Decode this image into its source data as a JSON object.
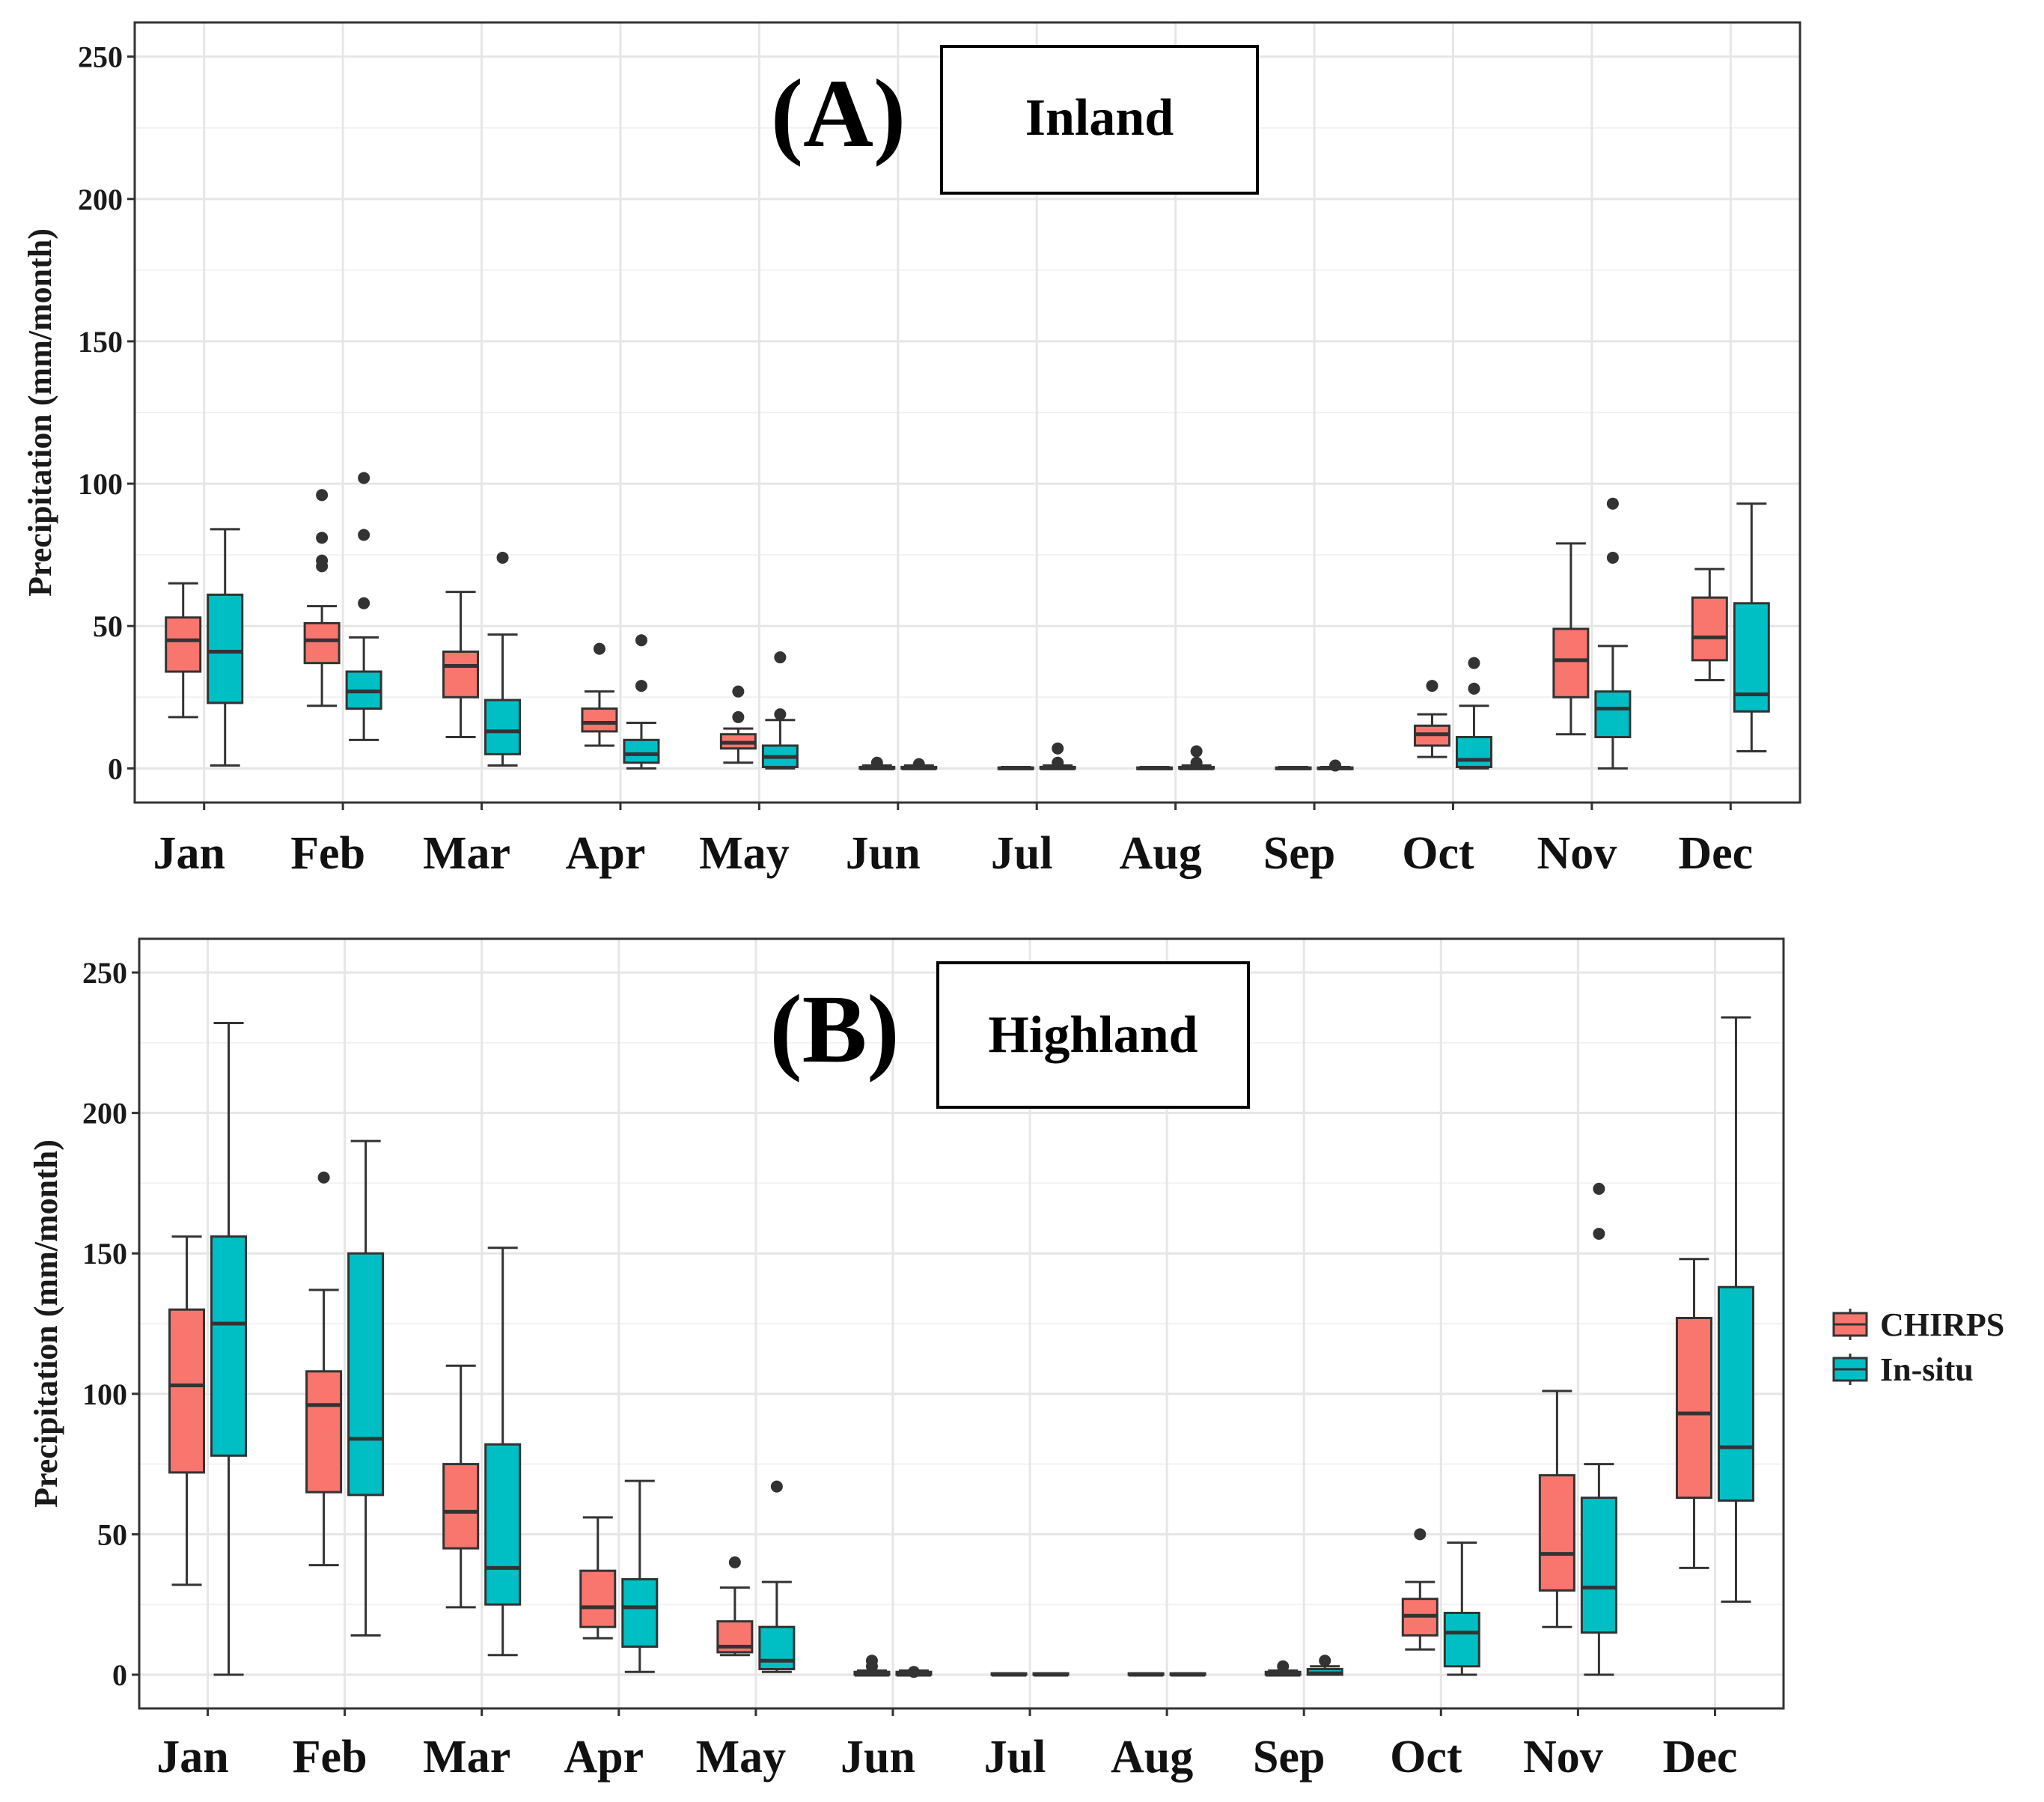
{
  "chart_data": [
    {
      "type": "boxplot",
      "panel_label": "(A)",
      "title": "Inland",
      "ylabel": "Precipitation (mm/month)",
      "xlabel": "",
      "ylim": [
        -12,
        262
      ],
      "yticks": [
        0,
        50,
        100,
        150,
        200,
        250
      ],
      "grid": true,
      "categories": [
        "Jan",
        "Feb",
        "Mar",
        "Apr",
        "May",
        "Jun",
        "Jul",
        "Aug",
        "Sep",
        "Oct",
        "Nov",
        "Dec"
      ],
      "series": [
        {
          "name": "CHIRPS",
          "color": "#F8766D",
          "boxes": [
            {
              "whisker_low": 18,
              "q1": 34,
              "median": 45,
              "q3": 53,
              "whisker_high": 65,
              "outliers": []
            },
            {
              "whisker_low": 22,
              "q1": 37,
              "median": 45,
              "q3": 51,
              "whisker_high": 57,
              "outliers": [
                71,
                73,
                81,
                96
              ]
            },
            {
              "whisker_low": 11,
              "q1": 25,
              "median": 36,
              "q3": 41,
              "whisker_high": 62,
              "outliers": []
            },
            {
              "whisker_low": 8,
              "q1": 13,
              "median": 16,
              "q3": 21,
              "whisker_high": 27,
              "outliers": [
                42
              ]
            },
            {
              "whisker_low": 2,
              "q1": 7,
              "median": 9,
              "q3": 12,
              "whisker_high": 14,
              "outliers": [
                18,
                27
              ]
            },
            {
              "whisker_low": 0,
              "q1": 0,
              "median": 0,
              "q3": 0.5,
              "whisker_high": 1,
              "outliers": [
                2
              ]
            },
            {
              "whisker_low": 0,
              "q1": 0,
              "median": 0,
              "q3": 0.3,
              "whisker_high": 0.5,
              "outliers": []
            },
            {
              "whisker_low": 0,
              "q1": 0,
              "median": 0,
              "q3": 0.3,
              "whisker_high": 0.5,
              "outliers": []
            },
            {
              "whisker_low": 0,
              "q1": 0,
              "median": 0,
              "q3": 0.3,
              "whisker_high": 0.5,
              "outliers": []
            },
            {
              "whisker_low": 4,
              "q1": 8,
              "median": 12,
              "q3": 15,
              "whisker_high": 19,
              "outliers": [
                29
              ]
            },
            {
              "whisker_low": 12,
              "q1": 25,
              "median": 38,
              "q3": 49,
              "whisker_high": 79,
              "outliers": []
            },
            {
              "whisker_low": 31,
              "q1": 38,
              "median": 46,
              "q3": 60,
              "whisker_high": 70,
              "outliers": []
            }
          ]
        },
        {
          "name": "In-situ",
          "color": "#00BFC4",
          "boxes": [
            {
              "whisker_low": 1,
              "q1": 23,
              "median": 41,
              "q3": 61,
              "whisker_high": 84,
              "outliers": []
            },
            {
              "whisker_low": 10,
              "q1": 21,
              "median": 27,
              "q3": 34,
              "whisker_high": 46,
              "outliers": [
                58,
                82,
                102
              ]
            },
            {
              "whisker_low": 1,
              "q1": 5,
              "median": 13,
              "q3": 24,
              "whisker_high": 47,
              "outliers": [
                74
              ]
            },
            {
              "whisker_low": 0,
              "q1": 2,
              "median": 5,
              "q3": 10,
              "whisker_high": 16,
              "outliers": [
                29,
                45
              ]
            },
            {
              "whisker_low": 0,
              "q1": 0.5,
              "median": 4,
              "q3": 8,
              "whisker_high": 17,
              "outliers": [
                19,
                39
              ]
            },
            {
              "whisker_low": 0,
              "q1": 0,
              "median": 0,
              "q3": 0.5,
              "whisker_high": 1,
              "outliers": [
                1.5
              ]
            },
            {
              "whisker_low": 0,
              "q1": 0,
              "median": 0,
              "q3": 0.5,
              "whisker_high": 1,
              "outliers": [
                2,
                7
              ]
            },
            {
              "whisker_low": 0,
              "q1": 0,
              "median": 0,
              "q3": 0.5,
              "whisker_high": 1,
              "outliers": [
                2,
                6
              ]
            },
            {
              "whisker_low": 0,
              "q1": 0,
              "median": 0,
              "q3": 0.3,
              "whisker_high": 0.5,
              "outliers": [
                1
              ]
            },
            {
              "whisker_low": 0,
              "q1": 0.5,
              "median": 3,
              "q3": 11,
              "whisker_high": 22,
              "outliers": [
                28,
                37
              ]
            },
            {
              "whisker_low": 0,
              "q1": 11,
              "median": 21,
              "q3": 27,
              "whisker_high": 43,
              "outliers": [
                74,
                93
              ]
            },
            {
              "whisker_low": 6,
              "q1": 20,
              "median": 26,
              "q3": 58,
              "whisker_high": 93,
              "outliers": []
            }
          ]
        }
      ]
    },
    {
      "type": "boxplot",
      "panel_label": "(B)",
      "title": "Highland",
      "ylabel": "Precipitation (mm/month)",
      "xlabel": "",
      "ylim": [
        -12,
        262
      ],
      "yticks": [
        0,
        50,
        100,
        150,
        200,
        250
      ],
      "grid": true,
      "categories": [
        "Jan",
        "Feb",
        "Mar",
        "Apr",
        "May",
        "Jun",
        "Jul",
        "Aug",
        "Sep",
        "Oct",
        "Nov",
        "Dec"
      ],
      "series": [
        {
          "name": "CHIRPS",
          "color": "#F8766D",
          "boxes": [
            {
              "whisker_low": 32,
              "q1": 72,
              "median": 103,
              "q3": 130,
              "whisker_high": 156,
              "outliers": []
            },
            {
              "whisker_low": 39,
              "q1": 65,
              "median": 96,
              "q3": 108,
              "whisker_high": 137,
              "outliers": [
                177
              ]
            },
            {
              "whisker_low": 24,
              "q1": 45,
              "median": 58,
              "q3": 75,
              "whisker_high": 110,
              "outliers": []
            },
            {
              "whisker_low": 13,
              "q1": 17,
              "median": 24,
              "q3": 37,
              "whisker_high": 56,
              "outliers": []
            },
            {
              "whisker_low": 7,
              "q1": 8,
              "median": 10,
              "q3": 19,
              "whisker_high": 31,
              "outliers": [
                40
              ]
            },
            {
              "whisker_low": 0,
              "q1": 0,
              "median": 0,
              "q3": 1,
              "whisker_high": 1.5,
              "outliers": [
                3,
                5
              ]
            },
            {
              "whisker_low": 0,
              "q1": 0,
              "median": 0,
              "q3": 0.5,
              "whisker_high": 0.5,
              "outliers": []
            },
            {
              "whisker_low": 0,
              "q1": 0,
              "median": 0,
              "q3": 0.5,
              "whisker_high": 0.5,
              "outliers": []
            },
            {
              "whisker_low": 0,
              "q1": 0,
              "median": 0,
              "q3": 1,
              "whisker_high": 1.5,
              "outliers": [
                3
              ]
            },
            {
              "whisker_low": 9,
              "q1": 14,
              "median": 21,
              "q3": 27,
              "whisker_high": 33,
              "outliers": [
                50
              ]
            },
            {
              "whisker_low": 17,
              "q1": 30,
              "median": 43,
              "q3": 71,
              "whisker_high": 101,
              "outliers": []
            },
            {
              "whisker_low": 38,
              "q1": 63,
              "median": 93,
              "q3": 127,
              "whisker_high": 148,
              "outliers": []
            }
          ]
        },
        {
          "name": "In-situ",
          "color": "#00BFC4",
          "boxes": [
            {
              "whisker_low": 0,
              "q1": 78,
              "median": 125,
              "q3": 156,
              "whisker_high": 232,
              "outliers": []
            },
            {
              "whisker_low": 14,
              "q1": 64,
              "median": 84,
              "q3": 150,
              "whisker_high": 190,
              "outliers": []
            },
            {
              "whisker_low": 7,
              "q1": 25,
              "median": 38,
              "q3": 82,
              "whisker_high": 152,
              "outliers": []
            },
            {
              "whisker_low": 1,
              "q1": 10,
              "median": 24,
              "q3": 34,
              "whisker_high": 69,
              "outliers": []
            },
            {
              "whisker_low": 1,
              "q1": 2,
              "median": 5,
              "q3": 17,
              "whisker_high": 33,
              "outliers": [
                67
              ]
            },
            {
              "whisker_low": 0,
              "q1": 0,
              "median": 0,
              "q3": 1,
              "whisker_high": 1.5,
              "outliers": [
                1
              ]
            },
            {
              "whisker_low": 0,
              "q1": 0,
              "median": 0,
              "q3": 0.5,
              "whisker_high": 0.5,
              "outliers": []
            },
            {
              "whisker_low": 0,
              "q1": 0,
              "median": 0,
              "q3": 0.5,
              "whisker_high": 0.5,
              "outliers": []
            },
            {
              "whisker_low": 0,
              "q1": 0,
              "median": 0.5,
              "q3": 2,
              "whisker_high": 3,
              "outliers": [
                5
              ]
            },
            {
              "whisker_low": 0,
              "q1": 3,
              "median": 15,
              "q3": 22,
              "whisker_high": 47,
              "outliers": []
            },
            {
              "whisker_low": 0,
              "q1": 15,
              "median": 31,
              "q3": 63,
              "whisker_high": 75,
              "outliers": [
                157,
                173
              ]
            },
            {
              "whisker_low": 26,
              "q1": 62,
              "median": 81,
              "q3": 138,
              "whisker_high": 234,
              "outliers": []
            }
          ]
        }
      ]
    }
  ],
  "legend": {
    "placement": "right",
    "items": [
      {
        "label": "CHIRPS",
        "color": "#F8766D"
      },
      {
        "label": "In-situ",
        "color": "#00BFC4"
      }
    ]
  }
}
